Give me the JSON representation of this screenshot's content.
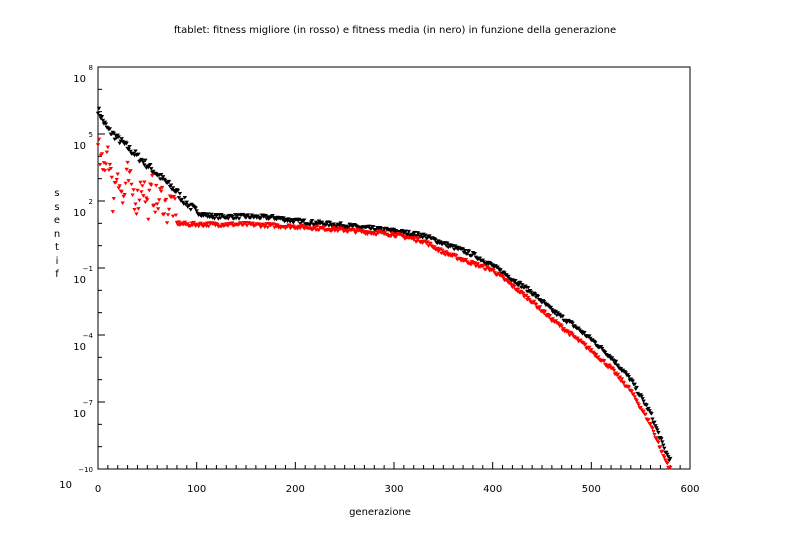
{
  "chart_data": {
    "type": "scatter",
    "title": "ftablet: fitness migliore (in rosso) e fitness media (in nero) in funzione della generazione",
    "xlabel": "generazione",
    "ylabel": "fitness",
    "xlim": [
      0,
      600
    ],
    "ylim_log10": [
      -10,
      8
    ],
    "y_scale": "log",
    "x_ticks": [
      "0",
      "100",
      "200",
      "300",
      "400",
      "500",
      "600"
    ],
    "y_ticks": [
      {
        "base": "10",
        "exp": "8"
      },
      {
        "base": "10",
        "exp": "5"
      },
      {
        "base": "10",
        "exp": "2"
      },
      {
        "base": "10",
        "exp": "−1"
      },
      {
        "base": "10",
        "exp": "−4"
      },
      {
        "base": "10",
        "exp": "−7"
      },
      {
        "base": "10",
        "exp": "−10"
      }
    ],
    "series_colors": {
      "media": "#000000",
      "migliore": "#ff0000"
    },
    "series": [
      {
        "key": "media",
        "log10_points": [
          [
            0,
            6.1
          ],
          [
            5,
            5.6
          ],
          [
            10,
            5.2
          ],
          [
            15,
            5.0
          ],
          [
            20,
            4.8
          ],
          [
            25,
            4.6
          ],
          [
            30,
            4.4
          ],
          [
            35,
            4.2
          ],
          [
            40,
            4.0
          ],
          [
            45,
            3.8
          ],
          [
            50,
            3.6
          ],
          [
            55,
            3.4
          ],
          [
            60,
            3.2
          ],
          [
            65,
            3.0
          ],
          [
            70,
            2.8
          ],
          [
            75,
            2.6
          ],
          [
            80,
            2.4
          ],
          [
            85,
            2.1
          ],
          [
            90,
            1.9
          ],
          [
            95,
            1.7
          ],
          [
            100,
            1.5
          ],
          [
            110,
            1.35
          ],
          [
            120,
            1.3
          ],
          [
            150,
            1.3
          ],
          [
            180,
            1.25
          ],
          [
            200,
            1.1
          ],
          [
            250,
            0.9
          ],
          [
            300,
            0.65
          ],
          [
            330,
            0.45
          ],
          [
            350,
            0.1
          ],
          [
            380,
            -0.4
          ],
          [
            400,
            -0.9
          ],
          [
            420,
            -1.5
          ],
          [
            440,
            -2.1
          ],
          [
            460,
            -2.9
          ],
          [
            480,
            -3.5
          ],
          [
            500,
            -4.2
          ],
          [
            520,
            -5.0
          ],
          [
            540,
            -6.0
          ],
          [
            560,
            -7.5
          ],
          [
            575,
            -9.2
          ],
          [
            580,
            -9.6
          ]
        ]
      },
      {
        "key": "migliore",
        "log10_points": [
          [
            0,
            4.3
          ],
          [
            5,
            3.3
          ],
          [
            10,
            4.5
          ],
          [
            15,
            2.1
          ],
          [
            20,
            3.5
          ],
          [
            25,
            1.9
          ],
          [
            30,
            3.1
          ],
          [
            35,
            2.4
          ],
          [
            40,
            2.0
          ],
          [
            45,
            3.0
          ],
          [
            50,
            1.7
          ],
          [
            55,
            2.5
          ],
          [
            60,
            1.9
          ],
          [
            65,
            2.2
          ],
          [
            70,
            1.6
          ],
          [
            75,
            2.0
          ],
          [
            80,
            1.0
          ],
          [
            90,
            0.95
          ],
          [
            100,
            0.95
          ],
          [
            120,
            0.95
          ],
          [
            150,
            0.95
          ],
          [
            200,
            0.85
          ],
          [
            250,
            0.7
          ],
          [
            300,
            0.5
          ],
          [
            330,
            0.2
          ],
          [
            350,
            -0.3
          ],
          [
            380,
            -0.8
          ],
          [
            400,
            -1.1
          ],
          [
            420,
            -1.8
          ],
          [
            440,
            -2.5
          ],
          [
            460,
            -3.3
          ],
          [
            480,
            -4.0
          ],
          [
            500,
            -4.7
          ],
          [
            520,
            -5.5
          ],
          [
            540,
            -6.5
          ],
          [
            560,
            -8.0
          ],
          [
            575,
            -9.6
          ],
          [
            580,
            -10.0
          ]
        ]
      }
    ]
  }
}
